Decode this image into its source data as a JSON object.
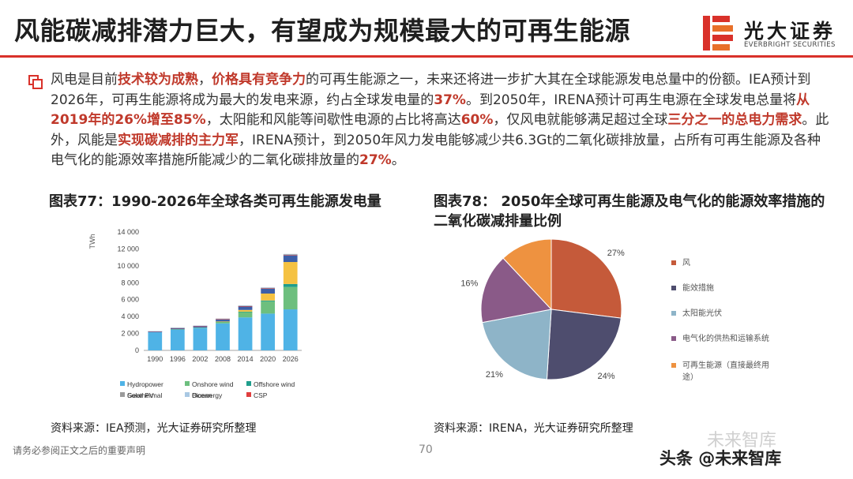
{
  "title": "风能碳减排潜力巨大，有望成为规模最大的可再生能源",
  "logo": {
    "cn": "光大证券",
    "en": "EVERBRIGHT SECURITIES",
    "colors": [
      "#d9312a",
      "#e8702a"
    ]
  },
  "paragraph": [
    {
      "t": "风电是目前"
    },
    {
      "t": "技术较为成熟",
      "hl": true
    },
    {
      "t": "，"
    },
    {
      "t": "价格具有竞争力",
      "hl": true
    },
    {
      "t": "的可再生能源之一，未来还将进一步扩大其在全球能源发电总量中的份额。IEA预计到2026年，可再生能源将成为最大的发电来源，约占全球发电量的"
    },
    {
      "t": "37%",
      "hl": true
    },
    {
      "t": "。到2050年，IRENA预计可再生电源在全球发电总量将"
    },
    {
      "t": "从2019年的26%增至85%",
      "hl": true
    },
    {
      "t": "，太阳能和风能等间歇性电源的占比将高达"
    },
    {
      "t": "60%",
      "hl": true
    },
    {
      "t": "，仅风电就能够满足超过全球"
    },
    {
      "t": "三分之一的总电力需求",
      "hl": true
    },
    {
      "t": "。此外，风能是"
    },
    {
      "t": "实现碳减排的主力军",
      "hl": true
    },
    {
      "t": "，IRENA预计，到2050年风力发电能够减少共6.3Gt的二氧化碳排放量，占所有可再生能源及各种电气化的能源效率措施所能减少的二氧化碳排放量的"
    },
    {
      "t": "27%",
      "hl": true
    },
    {
      "t": "。"
    }
  ],
  "chart77": {
    "title": "图表77：1990-2026年全球各类可再生能源发电量",
    "source": "资料来源：IEA预测，光大证券研究所整理"
  },
  "chart78": {
    "title": "图表78： 2050年全球可再生能源及电气化的能源效率措施的二氧化碳减排量比例",
    "source": "资料来源：IRENA，光大证券研究所整理"
  },
  "footer": {
    "disclaimer": "请务必参阅正文之后的重要声明",
    "page": "70",
    "watermark_top": "未来智库",
    "watermark": "头条 @未来智库"
  },
  "chart_data": [
    {
      "type": "bar",
      "stacked": true,
      "ylabel": "TWh",
      "ylim": [
        0,
        14000
      ],
      "yticks": [
        0,
        2000,
        4000,
        6000,
        8000,
        10000,
        12000,
        14000
      ],
      "ytick_labels": [
        "0",
        "2 000",
        "4 000",
        "6 000",
        "8 000",
        "10 000",
        "12 000",
        "14 000"
      ],
      "grid": false,
      "legend_position": "bottom",
      "categories": [
        "1990",
        "1996",
        "2002",
        "2008",
        "2014",
        "2020",
        "2026"
      ],
      "series": [
        {
          "name": "Hydropower",
          "color": "#4fb3e6",
          "values": [
            2150,
            2500,
            2650,
            3200,
            3900,
            4350,
            4850
          ]
        },
        {
          "name": "Onshore wind",
          "color": "#6dbf7e",
          "values": [
            0,
            10,
            50,
            200,
            650,
            1450,
            2650
          ]
        },
        {
          "name": "Offshore wind",
          "color": "#1f9e8c",
          "values": [
            0,
            0,
            0,
            10,
            30,
            100,
            350
          ]
        },
        {
          "name": "Solar PV",
          "color": "#f5c242",
          "values": [
            0,
            0,
            0,
            15,
            200,
            820,
            2600
          ]
        },
        {
          "name": "Bioenergy",
          "color": "#3c5fa8",
          "values": [
            100,
            130,
            180,
            270,
            440,
            610,
            800
          ]
        },
        {
          "name": "CSP",
          "color": "#e03e3e",
          "values": [
            1,
            1,
            1,
            1,
            8,
            14,
            25
          ]
        },
        {
          "name": "Geothermal",
          "color": "#9b9b9b",
          "values": [
            35,
            45,
            55,
            65,
            75,
            90,
            120
          ]
        },
        {
          "name": "Ocean",
          "color": "#a9c8e3",
          "values": [
            1,
            1,
            1,
            1,
            1,
            1,
            2
          ]
        }
      ]
    },
    {
      "type": "pie",
      "legend_position": "right",
      "slices": [
        {
          "label": "风",
          "value": 27,
          "display": "27%",
          "color": "#c55a3a"
        },
        {
          "label": "能效措施",
          "value": 24,
          "display": "24%",
          "color": "#4e4d6e"
        },
        {
          "label": "太阳能光伏",
          "value": 21,
          "display": "21%",
          "color": "#8eb4c8"
        },
        {
          "label": "电气化的供热和运输系统",
          "value": 16,
          "display": "16%",
          "color": "#8a5a88"
        },
        {
          "label": "可再生能源（直接最终用途）",
          "value": 12,
          "display": "12%",
          "color": "#ee9240"
        }
      ]
    }
  ]
}
